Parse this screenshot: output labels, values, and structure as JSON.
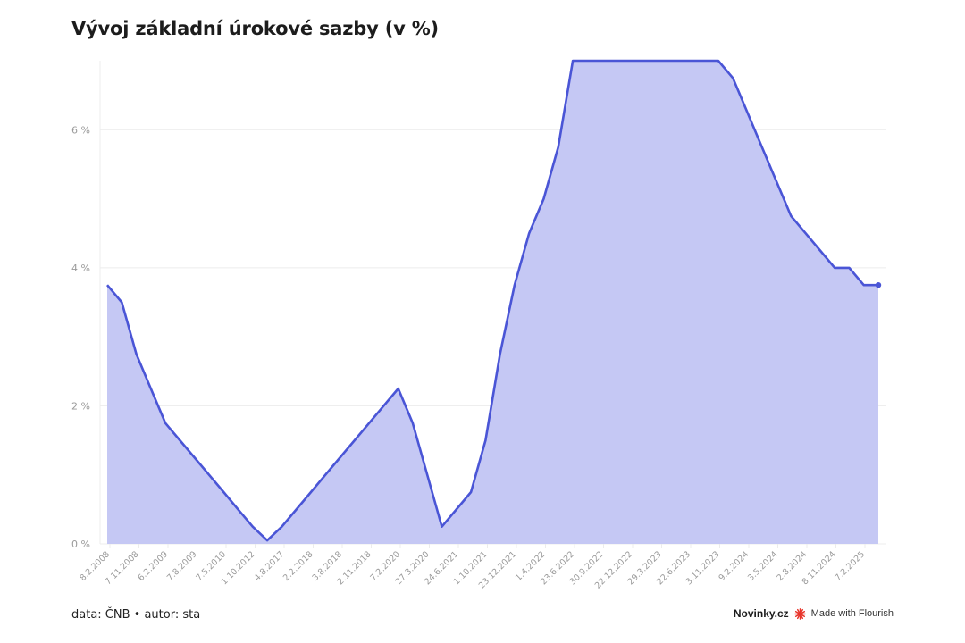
{
  "title": "Vývoj základní úrokové sazby (v %)",
  "footer": {
    "source": "data: ČNB • autor: sta",
    "brand": "Novinky.cz",
    "made_with": "Made with Flourish"
  },
  "colors": {
    "line": "#4a55d6",
    "area": "#c5c8f4",
    "grid": "#ececec",
    "tick_text": "#9a9a9a",
    "flourish": "#e8342a"
  },
  "chart_data": {
    "type": "area",
    "title": "Vývoj základní úrokové sazby (v %)",
    "xlabel": "",
    "ylabel": "",
    "ylim": [
      0,
      7
    ],
    "grid": true,
    "y_ticks": [
      0,
      2,
      4,
      6
    ],
    "y_tick_labels": [
      "0 %",
      "2 %",
      "4 %",
      "6 %"
    ],
    "x_tick_labels": [
      "8.2.2008",
      "7.11.2008",
      "6.2.2009",
      "7.8.2009",
      "7.5.2010",
      "1.10.2012",
      "4.8.2017",
      "2.2.2018",
      "3.8.2018",
      "2.11.2018",
      "7.2.2020",
      "27.3.2020",
      "24.6.2021",
      "1.10.2021",
      "23.12.2021",
      "1.4.2022",
      "23.6.2022",
      "30.9.2022",
      "22.12.2022",
      "29.3.2023",
      "22.6.2023",
      "3.11.2023",
      "9.2.2024",
      "3.5.2024",
      "2.8.2024",
      "8.11.2024",
      "7.2.2025"
    ],
    "series": [
      {
        "values": [
          3.75,
          3.5,
          2.75,
          2.25,
          1.75,
          1.5,
          1.25,
          1.0,
          0.75,
          0.5,
          0.25,
          0.05,
          0.25,
          0.5,
          0.75,
          1.0,
          1.25,
          1.5,
          1.75,
          2.0,
          2.25,
          1.75,
          1.0,
          0.25,
          0.5,
          0.75,
          1.5,
          2.75,
          3.75,
          4.5,
          5.0,
          5.75,
          7.0,
          7.0,
          7.0,
          7.0,
          7.0,
          7.0,
          7.0,
          7.0,
          7.0,
          7.0,
          7.0,
          6.75,
          6.25,
          5.75,
          5.25,
          4.75,
          4.5,
          4.25,
          4.0,
          4.0,
          3.75,
          3.75
        ]
      }
    ]
  }
}
